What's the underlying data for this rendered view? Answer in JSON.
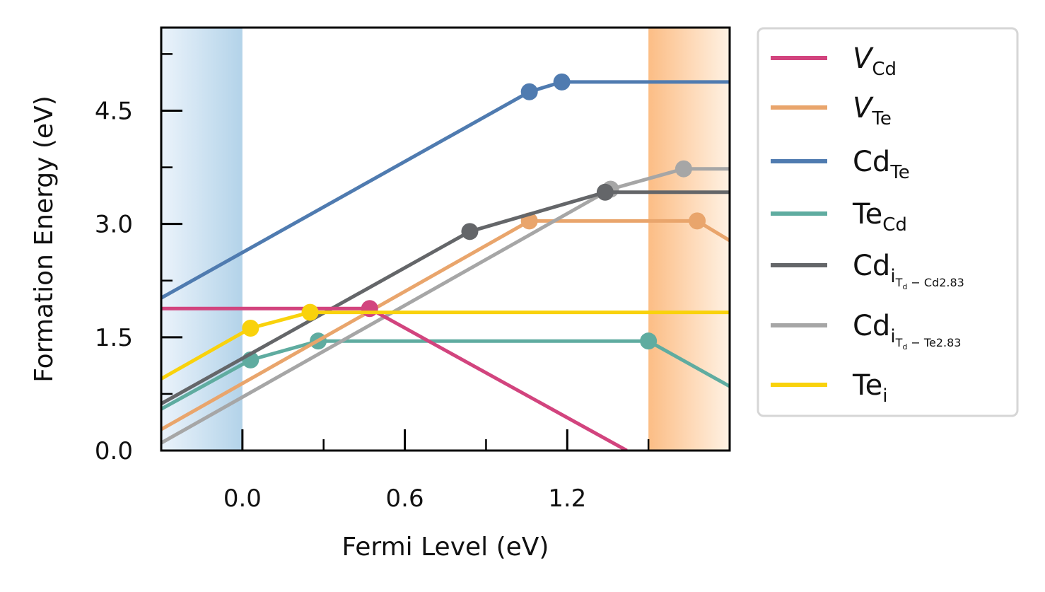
{
  "chart_data": {
    "type": "line",
    "xlabel": "Fermi Level (eV)",
    "ylabel": "Formation Energy (eV)",
    "xlim": [
      -0.3,
      1.8
    ],
    "ylim": [
      0.0,
      5.6
    ],
    "xticks": [
      0.0,
      0.6,
      1.2
    ],
    "xtick_labels": [
      "0.0",
      "0.6",
      "1.2"
    ],
    "xminor": [
      0.3,
      0.9,
      1.5
    ],
    "yticks": [
      0.0,
      1.5,
      3.0,
      4.5
    ],
    "ytick_labels": [
      "0.0",
      "1.5",
      "3.0",
      "4.5"
    ],
    "yminor": [
      0.75,
      2.25,
      3.75,
      5.25
    ],
    "grid": false,
    "shaded_regions": [
      {
        "name": "valence-band",
        "x0": -0.3,
        "x1": 0.0,
        "from_color": "#ebf3fb",
        "to_color": "#b3d3e9"
      },
      {
        "name": "conduction-band",
        "x0": 1.5,
        "x1": 1.8,
        "from_color": "#fcbd85",
        "to_color": "#fff2e4"
      }
    ],
    "legend": {
      "position": "outside-right",
      "entries": [
        {
          "base": "V",
          "sub": "Cd",
          "italic": true,
          "color": "#d2447e"
        },
        {
          "base": "V",
          "sub": "Te",
          "italic": true,
          "color": "#e9a56c"
        },
        {
          "base": "Cd",
          "sub": "Te",
          "color": "#4f7bb0"
        },
        {
          "base": "Te",
          "sub": "Cd",
          "color": "#5faca0"
        },
        {
          "base": "Cd",
          "sub": "i",
          "subsub": "T",
          "subsubsub": "d",
          "subtail": " − Cd2.83",
          "color": "#646669"
        },
        {
          "base": "Cd",
          "sub": "i",
          "subsub": "T",
          "subsubsub": "d",
          "subtail": " − Te2.83",
          "color": "#a6a6a6"
        },
        {
          "base": "Te",
          "sub": "i",
          "color": "#f9d20c"
        }
      ]
    },
    "series": [
      {
        "color": "#4f7bb0",
        "x": [
          -0.3,
          1.06,
          1.18,
          1.8
        ],
        "y": [
          2.02,
          4.75,
          4.88,
          4.88
        ],
        "markers": [
          [
            1.06,
            4.75
          ],
          [
            1.18,
            4.88
          ]
        ]
      },
      {
        "color": "#5faca0",
        "x": [
          -0.3,
          0.03,
          0.28,
          1.5,
          1.8
        ],
        "y": [
          0.55,
          1.2,
          1.45,
          1.45,
          0.85
        ],
        "markers": [
          [
            0.03,
            1.2
          ],
          [
            0.28,
            1.45
          ],
          [
            1.5,
            1.45
          ]
        ]
      },
      {
        "color": "#e9a56c",
        "x": [
          -0.3,
          1.06,
          1.68,
          1.8
        ],
        "y": [
          0.28,
          3.04,
          3.04,
          2.78
        ],
        "markers": [
          [
            1.06,
            3.04
          ],
          [
            1.68,
            3.04
          ]
        ]
      },
      {
        "color": "#a6a6a6",
        "x": [
          -0.3,
          1.36,
          1.63,
          1.8
        ],
        "y": [
          0.1,
          3.46,
          3.73,
          3.73
        ],
        "markers": [
          [
            1.36,
            3.46
          ],
          [
            1.63,
            3.73
          ]
        ]
      },
      {
        "color": "#646669",
        "x": [
          -0.3,
          0.84,
          1.34,
          1.8
        ],
        "y": [
          0.62,
          2.9,
          3.42,
          3.42
        ],
        "markers": [
          [
            0.84,
            2.9
          ],
          [
            1.34,
            3.42
          ]
        ]
      },
      {
        "color": "#d2447e",
        "x": [
          -0.3,
          0.47,
          1.42
        ],
        "y": [
          1.88,
          1.88,
          0.0
        ],
        "markers": [
          [
            0.47,
            1.88
          ]
        ]
      },
      {
        "color": "#f9d20c",
        "x": [
          -0.3,
          0.03,
          0.25,
          1.8
        ],
        "y": [
          0.95,
          1.62,
          1.83,
          1.83
        ],
        "markers": [
          [
            0.03,
            1.62
          ],
          [
            0.25,
            1.83
          ]
        ]
      }
    ]
  }
}
